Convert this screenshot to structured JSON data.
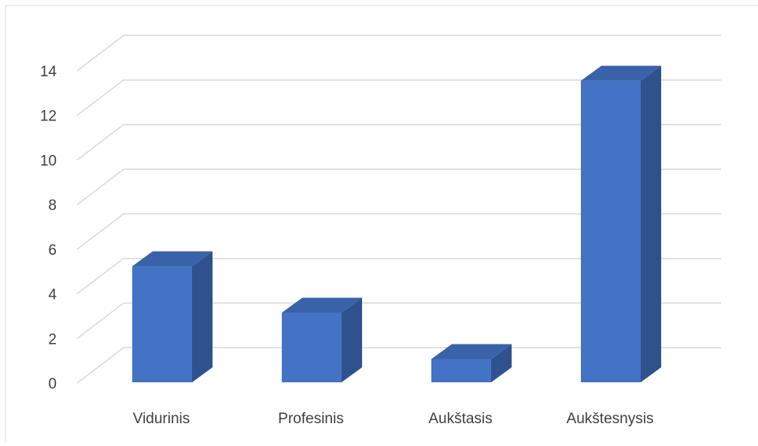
{
  "chart_data": {
    "type": "bar",
    "style": "3d-column",
    "categories": [
      "Vidurinis",
      "Profesinis",
      "Aukštasis",
      "Aukštesnysis"
    ],
    "values": [
      5,
      3,
      1,
      13
    ],
    "title": "",
    "xlabel": "",
    "ylabel": "",
    "ylim": [
      0,
      14
    ],
    "yticks": [
      0,
      2,
      4,
      6,
      8,
      10,
      12,
      14
    ],
    "grid": true,
    "legend": "none",
    "colors": {
      "bar_front": "#4472c4",
      "bar_side": "#2f528f",
      "bar_top": "#3a62a8",
      "grid": "#d9d9d9",
      "text": "#404040",
      "frame": "#d9d9d9"
    }
  }
}
